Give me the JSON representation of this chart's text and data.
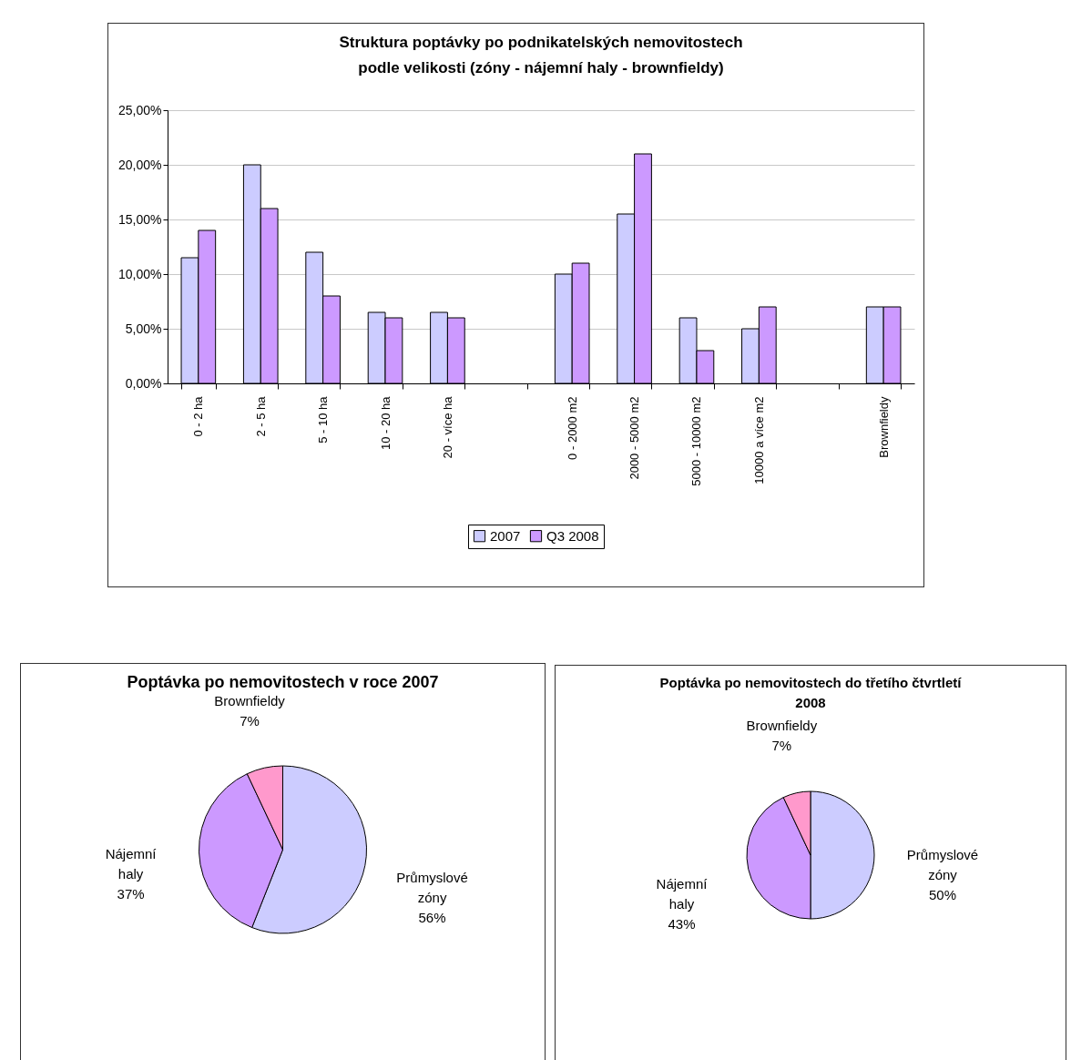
{
  "chart_data": [
    {
      "type": "bar",
      "title": "Struktura poptávky po podnikatelských nemovitostech podle velikosti (zóny - nájemní haly - brownfieldy)",
      "categories": [
        "0 - 2 ha",
        "2 - 5 ha",
        "5 - 10 ha",
        "10 - 20 ha",
        "20 - více ha",
        null,
        "0 - 2000 m2",
        "2000 - 5000 m2",
        "5000 - 10000 m2",
        "10000 a více m2",
        null,
        "Brownfieldy"
      ],
      "series": [
        {
          "name": "2007",
          "color": "#ccccff",
          "values": [
            11.5,
            20,
            12,
            6.5,
            6.5,
            null,
            10,
            15.5,
            6,
            5,
            null,
            7
          ]
        },
        {
          "name": "Q3 2008",
          "color": "#cc99ff",
          "values": [
            14,
            16,
            8,
            6,
            6,
            null,
            11,
            21,
            3,
            7,
            null,
            7
          ]
        }
      ],
      "ylim": [
        0,
        25
      ],
      "yticks": [
        {
          "value": 0,
          "label": "0,00%"
        },
        {
          "value": 5,
          "label": "5,00%"
        },
        {
          "value": 10,
          "label": "10,00%"
        },
        {
          "value": 15,
          "label": "15,00%"
        },
        {
          "value": 20,
          "label": "20,00%"
        },
        {
          "value": 25,
          "label": "25,00%"
        }
      ],
      "grid": "y",
      "legend": "bottom"
    },
    {
      "type": "pie",
      "title": "Poptávka po nemovitostech v roce 2007",
      "categories": [
        "Průmyslové zóny",
        "Nájemní haly",
        "Brownfieldy"
      ],
      "values": [
        56,
        37,
        7
      ],
      "value_labels": [
        "56%",
        "37%",
        "7%"
      ],
      "colors": [
        "#ccccff",
        "#cc99ff",
        "#ff99cc"
      ]
    },
    {
      "type": "pie",
      "title": "Poptávka po nemovitostech do třetího čtvrtletí 2008",
      "categories": [
        "Průmyslové zóny",
        "Nájemní haly",
        "Brownfieldy"
      ],
      "values": [
        50,
        43,
        7
      ],
      "value_labels": [
        "50%",
        "43%",
        "7%"
      ],
      "colors": [
        "#ccccff",
        "#cc99ff",
        "#ff99cc"
      ]
    }
  ]
}
